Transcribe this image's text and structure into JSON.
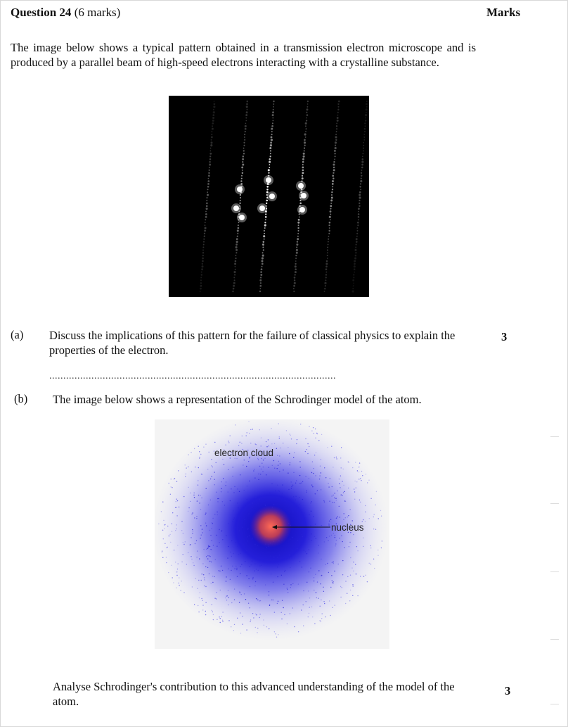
{
  "question": {
    "number_label": "Question 24",
    "marks_label": "(6 marks)",
    "marks_column_header": "Marks"
  },
  "intro_text": "The image below shows a typical pattern obtained in a transmission electron microscope and is produced by a parallel beam of high-speed electrons interacting with a crystalline substance.",
  "part_a": {
    "label": "(a)",
    "text": "Discuss the implications of this pattern for the failure of classical physics to explain the properties of the electron.",
    "marks": "3",
    "answer_line": "......................................................................................................"
  },
  "part_b": {
    "label": "(b)",
    "text": "The image below shows a representation of the Schrodinger model of the atom.",
    "figure": {
      "electron_cloud_label": "electron cloud",
      "nucleus_label": "nucleus",
      "cloud_color": "#1a14d8",
      "nucleus_color": "#e04040"
    },
    "question_text": "Analyse Schrodinger's contribution to this advanced understanding of the model of the atom.",
    "marks": "3"
  }
}
